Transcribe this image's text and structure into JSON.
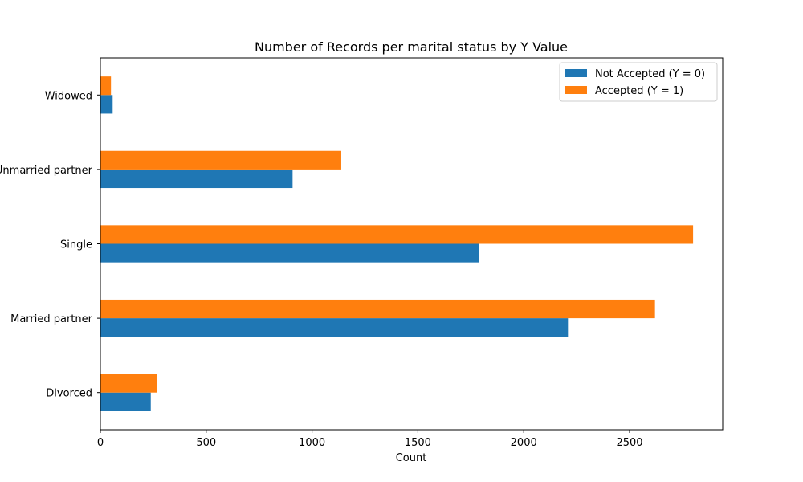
{
  "chart_data": {
    "type": "bar",
    "orientation": "horizontal",
    "title": "Number of Records per marital status by Y Value",
    "xlabel": "Count",
    "ylabel": "",
    "categories": [
      "Divorced",
      "Married partner",
      "Single",
      "Unmarried partner",
      "Widowed"
    ],
    "series": [
      {
        "name": "Not Accepted (Y = 0)",
        "color": "#1f77b4",
        "values": [
          238,
          2209,
          1788,
          908,
          58
        ]
      },
      {
        "name": "Accepted (Y = 1)",
        "color": "#ff7f0e",
        "values": [
          268,
          2620,
          2800,
          1138,
          50
        ]
      }
    ],
    "xlim": [
      0,
      2940
    ],
    "xticks": [
      0,
      500,
      1000,
      1500,
      2000,
      2500
    ],
    "grid": false,
    "legend_position": "top-right"
  }
}
